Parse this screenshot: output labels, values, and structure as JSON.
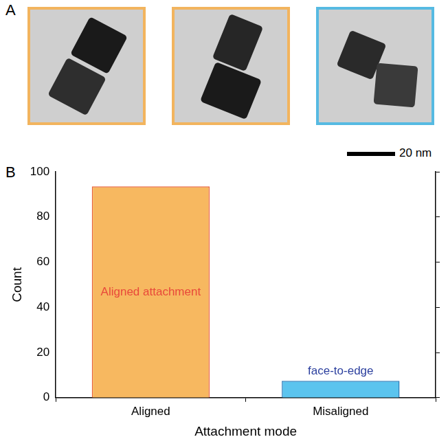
{
  "chart_data": {
    "type": "bar",
    "categories": [
      "Aligned",
      "Misaligned"
    ],
    "values": [
      93.5,
      7.5
    ],
    "colors": [
      "#f7b860",
      "#5bc4ee"
    ],
    "xlabel": "Attachment mode",
    "ylabel": "Count",
    "ylim": [
      0,
      100
    ],
    "yticks": [
      0,
      20,
      40,
      60,
      80,
      100
    ],
    "grid": false,
    "annotations": [
      {
        "text": "Aligned attachment",
        "category": "Aligned",
        "color": "#e8483a"
      },
      {
        "text": "face-to-edge",
        "category": "Misaligned",
        "color": "#2b3f9e"
      }
    ]
  },
  "figure": {
    "panel_labels": [
      "A",
      "B"
    ],
    "scale_bar": "20 nm"
  }
}
